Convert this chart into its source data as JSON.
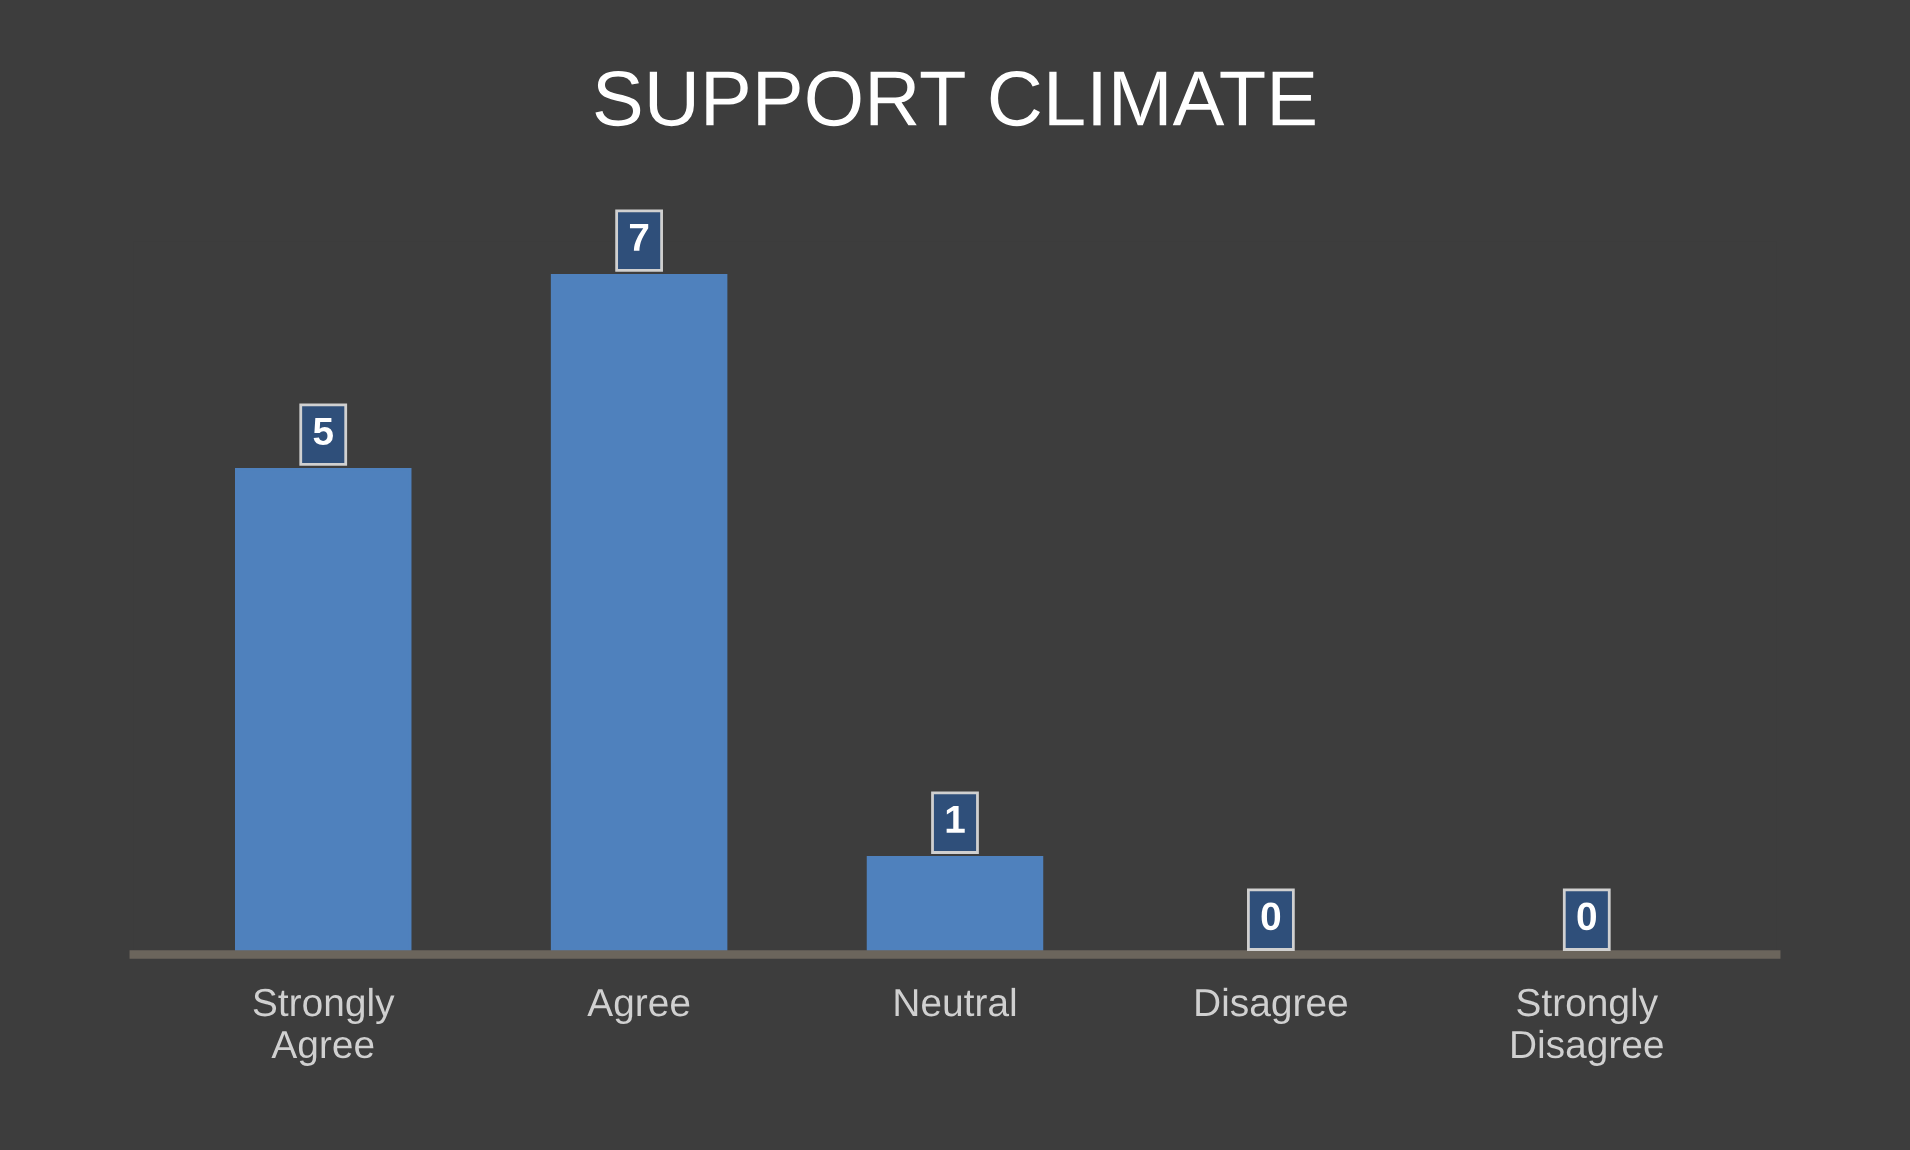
{
  "chart_data": {
    "type": "bar",
    "title": "SUPPORT CLIMATE",
    "categories": [
      "Strongly Agree",
      "Agree",
      "Neutral",
      "Disagree",
      "Strongly Disagree"
    ],
    "values": [
      5,
      7,
      1,
      0,
      0
    ],
    "color": "#4f81bd",
    "data_labels": true,
    "grid": false
  }
}
